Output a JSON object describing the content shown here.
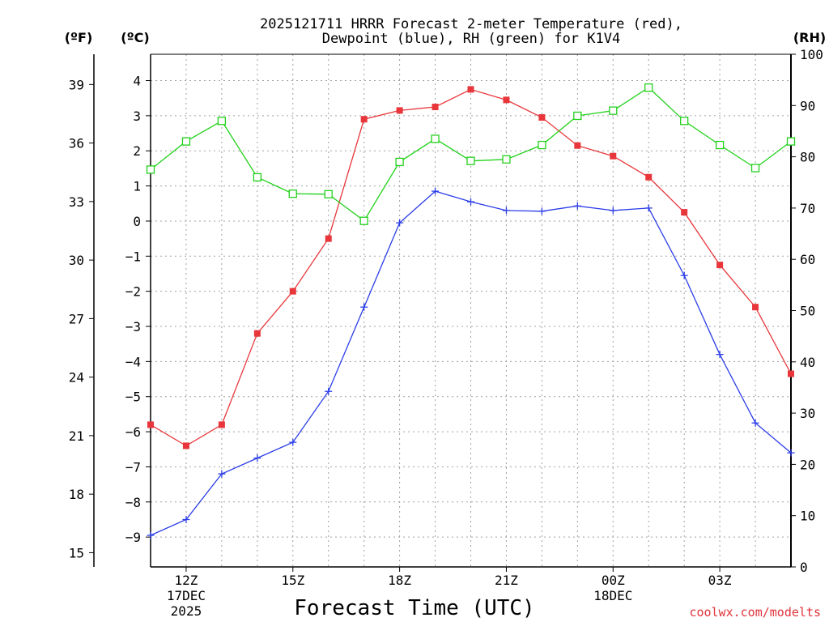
{
  "chart_data": {
    "type": "line",
    "title_line1": "2025121711 HRRR Forecast 2-meter Temperature (red),",
    "title_line2": "Dewpoint (blue), RH (green) for K1V4",
    "xlabel": "Forecast Time (UTC)",
    "credit": "coolwx.com/modelts",
    "units": {
      "f": "(ºF)",
      "c": "(ºC)",
      "rh": "(RH)"
    },
    "x_hours": [
      11,
      12,
      13,
      14,
      15,
      16,
      17,
      18,
      19,
      20,
      21,
      22,
      23,
      24,
      25,
      26,
      27,
      28,
      29
    ],
    "x_range": [
      11,
      29
    ],
    "x_ticks": [
      {
        "hour": 12,
        "label": "12Z",
        "sub1": "17DEC",
        "sub2": "2025"
      },
      {
        "hour": 15,
        "label": "15Z",
        "sub1": "",
        "sub2": ""
      },
      {
        "hour": 18,
        "label": "18Z",
        "sub1": "",
        "sub2": ""
      },
      {
        "hour": 21,
        "label": "21Z",
        "sub1": "",
        "sub2": ""
      },
      {
        "hour": 24,
        "label": "00Z",
        "sub1": "18DEC",
        "sub2": ""
      },
      {
        "hour": 27,
        "label": "03Z",
        "sub1": "",
        "sub2": ""
      }
    ],
    "celsius_axis": {
      "range": [
        -9.85,
        4.75
      ],
      "ticks": [
        4,
        3,
        2,
        1,
        0,
        -1,
        -2,
        -3,
        -4,
        -5,
        -6,
        -7,
        -8,
        -9
      ]
    },
    "fahrenheit_axis": {
      "ticks": [
        39,
        36,
        33,
        30,
        27,
        24,
        21,
        18,
        15
      ]
    },
    "rh_axis": {
      "range": [
        0,
        100
      ],
      "ticks": [
        100,
        90,
        80,
        70,
        60,
        50,
        40,
        30,
        20,
        10,
        0
      ]
    },
    "series": [
      {
        "name": "Temperature",
        "color": "#e8363b",
        "marker": "filled-square",
        "axis": "celsius",
        "values": [
          -5.8,
          -6.4,
          -5.8,
          -3.2,
          -2.0,
          -0.5,
          2.9,
          3.15,
          3.25,
          3.75,
          3.45,
          2.95,
          2.15,
          1.85,
          1.25,
          0.25,
          -1.25,
          -2.45,
          -4.35
        ]
      },
      {
        "name": "Dewpoint",
        "color": "#2b3de8",
        "marker": "plus",
        "axis": "celsius",
        "values": [
          -8.95,
          -8.5,
          -7.2,
          -6.75,
          -6.3,
          -4.85,
          -2.45,
          -0.05,
          0.85,
          0.55,
          0.3,
          0.28,
          0.43,
          0.3,
          0.37,
          -1.55,
          -3.8,
          -5.75,
          -6.6
        ]
      },
      {
        "name": "RH",
        "color": "#22d11c",
        "marker": "open-square",
        "axis": "rh",
        "values": [
          77.5,
          83,
          87,
          76,
          72.8,
          72.7,
          67.5,
          79,
          83.5,
          79.2,
          79.5,
          82.3,
          88,
          89,
          93.5,
          87,
          82.3,
          77.8,
          83
        ]
      }
    ]
  }
}
